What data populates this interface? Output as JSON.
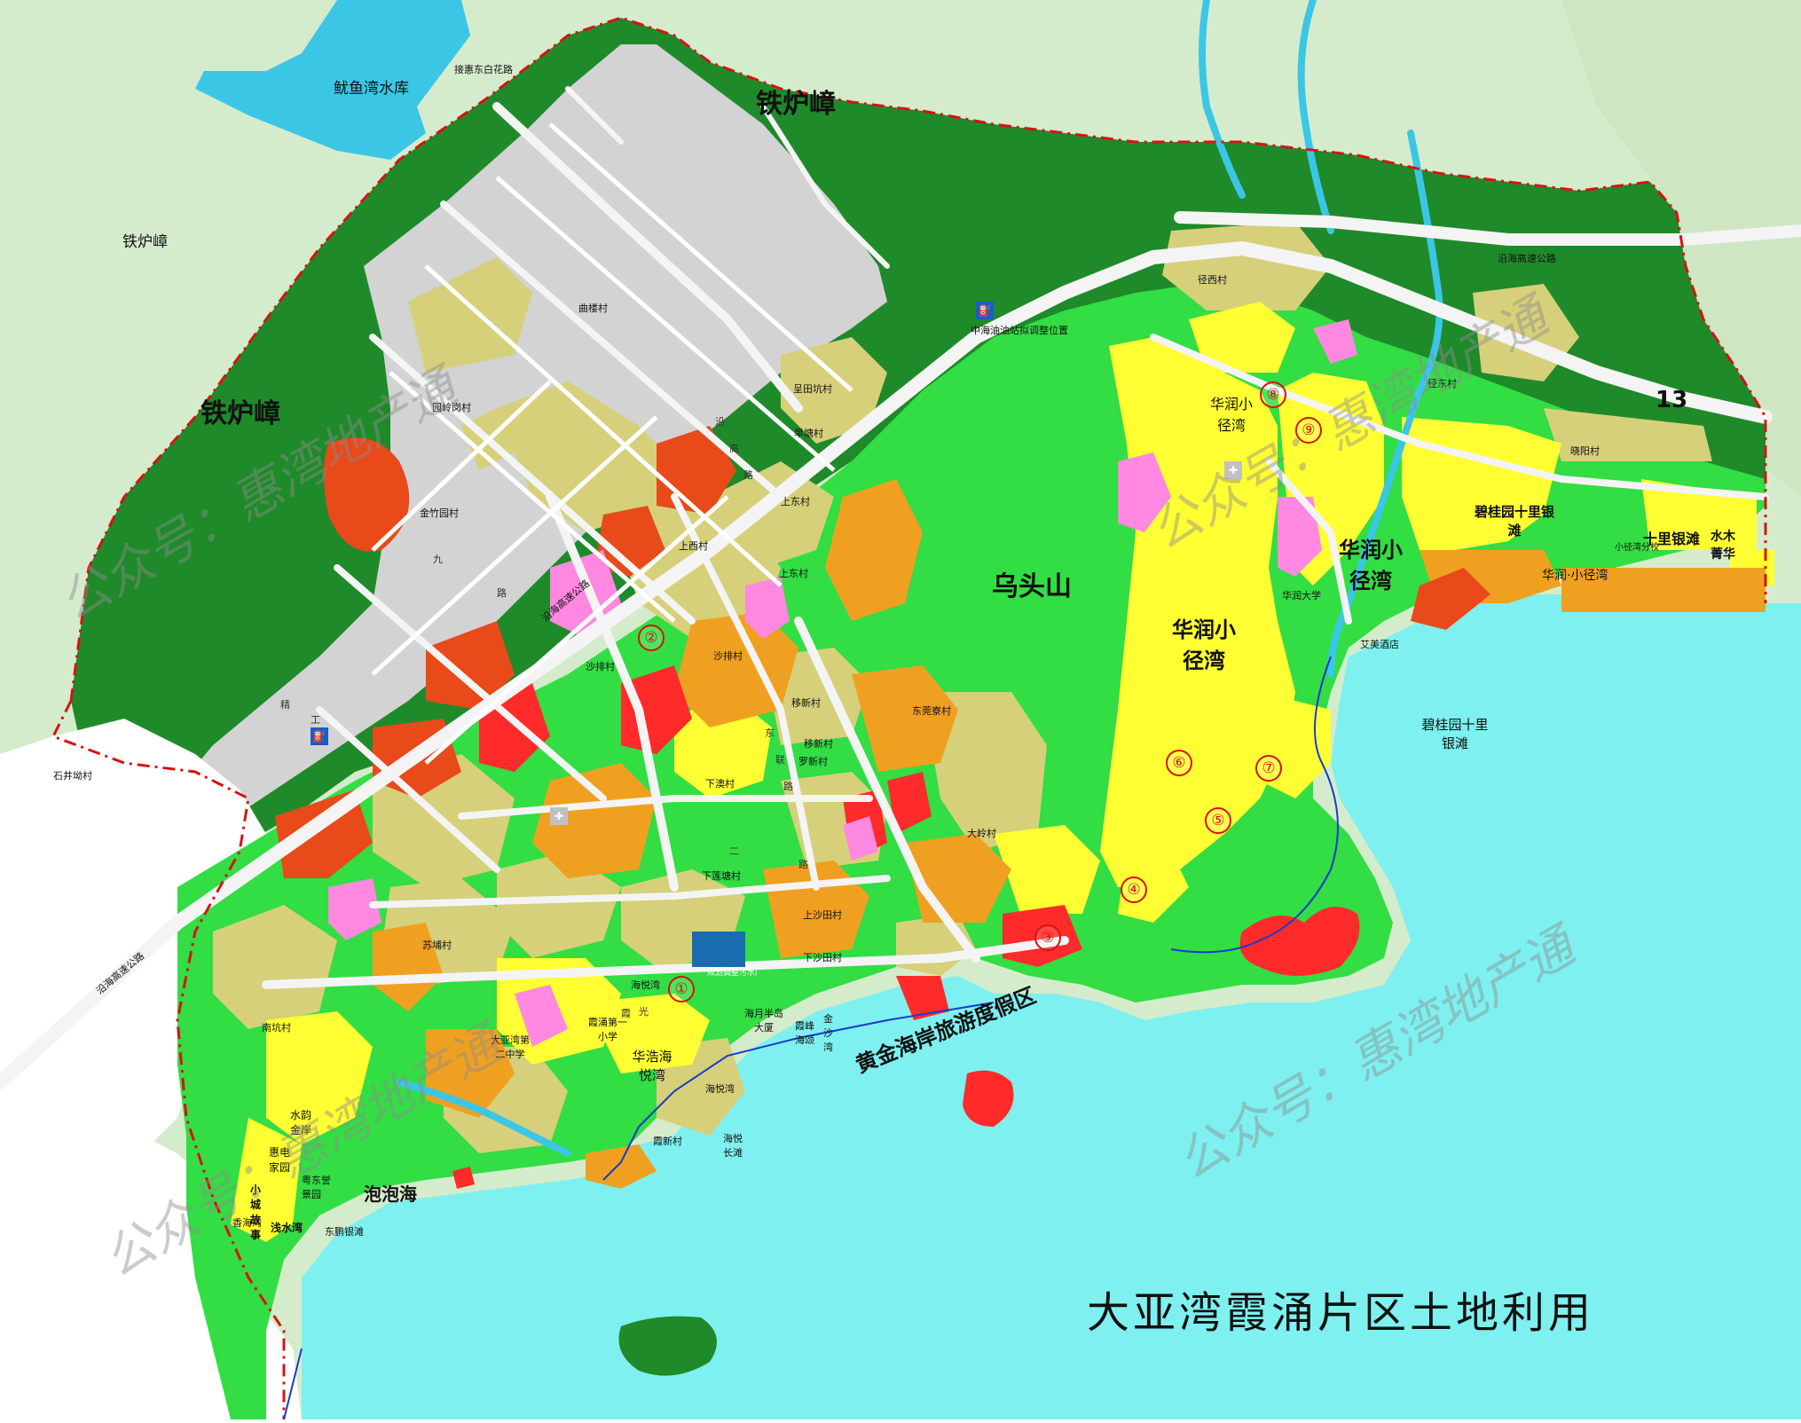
{
  "title": "大亚湾霞涌片区土地利用",
  "watermark": "公众号：惠湾地产通",
  "colors": {
    "forest": "#1f8a2a",
    "green_space": "#33dd44",
    "residential": "#ffff33",
    "village": "#d6d07a",
    "commercial": "#ff2a2a",
    "mixed_commercial": "#e84a1a",
    "school": "#ff88e0",
    "public_service": "#f0a020",
    "industrial_existing": "#d3d3d3",
    "sea": "#7ef0ef",
    "water": "#3cc6e6",
    "farmland": "#d4eccc",
    "road": "#f4f4f4",
    "boundary": "#d41414"
  },
  "major_areas": {
    "tielu_zhang_1": "铁炉嶂",
    "tielu_zhang_2": "铁炉嶂",
    "tielu_zhang_3": "铁炉嶂",
    "wutoushan": "乌头山",
    "resort": "黄金海岸旅游度假区",
    "paopaohai": "泡泡海",
    "huarun_1": "华润小径湾",
    "huarun_2": "华润小径湾",
    "huarun_3": "华润小径湾",
    "huarun_strip": "华润·小径湾",
    "biguiyuan_shore": "碧桂园十里银滩",
    "biguiyuan_sea": "碧桂园十里银滩",
    "shili_yintan": "十里银滩",
    "shuimu_jinghua": "水木菁华",
    "huahao": "华浩海悦湾",
    "reservoir": "鱿鱼湾水库",
    "area13": "13"
  },
  "small_labels": {
    "jiehui_road": "接惠东白花路",
    "coastal_hw_top": "沿海高速公路",
    "coastal_hw_left": "沿海高速公路",
    "coastal_hw_left2": "沿海高速公路",
    "zhonghai_station": "中海油油站拟调整位置",
    "shuangyu": "石井坳村",
    "quyuan": "曲楼村",
    "yuanling": "园岭岗村",
    "jinzhu": "金竹园村",
    "chengtian": "呈田坑村",
    "zaotang": "旱塘村",
    "shangdong": "上东村",
    "shangxi": "上西村",
    "shangdong2": "上东村",
    "shapai": "沙排村",
    "shapai2": "沙排村",
    "yixin": "移新村",
    "yixin2": "移新村",
    "dongguan": "东莞寮村",
    "xiaao": "下澳村",
    "xialiantang": "下莲塘村",
    "shangshatian": "上沙田村",
    "xiashatian": "下沙田村",
    "dalingcun": "大岭村",
    "suchengcun": "苏埔村",
    "nankeng": "南坑村",
    "haiyue": "海悦湾",
    "haiyue2": "海悦湾",
    "haiyuechang": "海悦长滩",
    "xiachong1": "霞涌第一小学",
    "dayawan2": "大亚湾第二中学",
    "haiyue_bandao": "海月半岛大厦",
    "xiafeng": "霞峰海颂",
    "jinsha": "金沙湾",
    "xiaxin": "霞新村",
    "shuiyun": "水韵金岸",
    "huidian": "惠电家园",
    "xiaocheng": "小城故事",
    "yuedong": "粤东誉景园",
    "xianghai": "香海湾",
    "qianshui": "浅水湾",
    "dongpeng": "东鹏银滩",
    "jingxi": "径西村",
    "jingdong": "径东村",
    "xiaoyang": "晓阳村",
    "huarun_daxue": "华润大学",
    "aimei": "艾美酒店",
    "xiaojing_school": "小径湾分校",
    "sewage": "规划调整污水厂",
    "luoxin": "罗新村"
  },
  "circled_numbers": {
    "n1": "①",
    "n2": "②",
    "n3": "③",
    "n4": "④",
    "n5": "⑤",
    "n6": "⑥",
    "n7": "⑦",
    "n8": "⑧",
    "n9": "⑨"
  },
  "road_chars": {
    "jing1": "精",
    "jing2": "工",
    "jing3": "九",
    "jing4": "路",
    "xia1": "霞",
    "xia2": "光",
    "xia3": "二",
    "xia4": "路",
    "dong1": "东",
    "dong2": "联",
    "dong3": "路",
    "yan1": "沿",
    "yan2": "高",
    "yan3": "路"
  }
}
